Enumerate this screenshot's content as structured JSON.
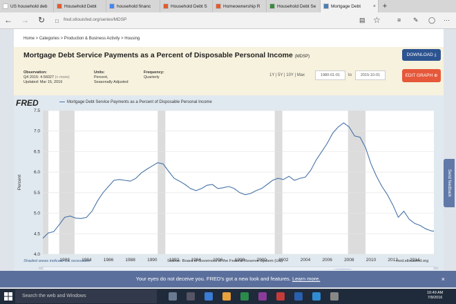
{
  "browser": {
    "tabs": [
      {
        "label": "US household deb",
        "color": "#ffffff",
        "active": false
      },
      {
        "label": "Household Debt",
        "color": "#e35b2d",
        "active": false
      },
      {
        "label": "household financ",
        "color": "#4285f4",
        "active": false
      },
      {
        "label": "Household Debt S",
        "color": "#e35b2d",
        "active": false
      },
      {
        "label": "Homeownership R",
        "color": "#e35b2d",
        "active": false
      },
      {
        "label": "Household Debt Se",
        "color": "#3b8a3b",
        "active": false
      },
      {
        "label": "Mortgage Debt",
        "color": "#4a7fb5",
        "active": true
      }
    ],
    "new_tab": "+",
    "url": "fred.stlouisfed.org/series/MDSP"
  },
  "page": {
    "breadcrumb": "Home > Categories > Production & Business Activity > Housing",
    "title": "Mortgage Debt Service Payments as a Percent of Disposable Personal Income",
    "series_id": "(MDSP)",
    "download_label": "DOWNLOAD",
    "edit_label": "EDIT GRAPH",
    "observation": {
      "label": "Observation:",
      "period": "Q4 2015:",
      "value": "4.56027",
      "more": "(+ more)",
      "updated": "Updated: Mar 15, 2016"
    },
    "units": {
      "label": "Units:",
      "l1": "Percent,",
      "l2": "Seasonally Adjusted"
    },
    "frequency": {
      "label": "Frequency:",
      "value": "Quarterly"
    },
    "ranges": "1Y | 5Y | 10Y | Max",
    "start_date": "1980-01-01",
    "to_label": "to",
    "end_date": "2015-10-01",
    "legend": "Mortgage Debt Service Payments as a Percent of Disposable Personal Income",
    "fred_logo": "FRED",
    "footer_left": "Shaded areas indicate US recessions",
    "footer_source": "Source: Board of Governors of the Federal Reserve System (US)",
    "footer_right": "fred.stlouisfed.org"
  },
  "banner": {
    "text": "Your eyes do not deceive you. FRED's got a new look and features.",
    "link": "Learn more.",
    "close": "×"
  },
  "feedback": "Send feedback",
  "taskbar": {
    "search": "Search the web and Windows",
    "time": "10:49 AM",
    "date": "7/9/2016"
  },
  "chart_data": {
    "type": "line",
    "title": "Mortgage Debt Service Payments as a Percent of Disposable Personal Income",
    "ylabel": "Percent",
    "ylim": [
      4.0,
      7.5
    ],
    "yticks": [
      "4.0",
      "4.5",
      "5.0",
      "5.5",
      "6.0",
      "6.5",
      "7.0",
      "7.5"
    ],
    "xticks": [
      "1982",
      "1984",
      "1986",
      "1988",
      "1990",
      "1992",
      "1994",
      "1996",
      "1998",
      "2000",
      "2002",
      "2004",
      "2006",
      "2008",
      "2010",
      "2012",
      "2014"
    ],
    "recessions": [
      [
        1980.0,
        1980.5
      ],
      [
        1981.5,
        1982.9
      ],
      [
        1990.5,
        1991.2
      ],
      [
        2001.2,
        2001.9
      ],
      [
        2007.9,
        2009.5
      ]
    ],
    "x": [
      1980.0,
      1980.5,
      1981.0,
      1981.5,
      1982.0,
      1982.5,
      1983.0,
      1983.5,
      1984.0,
      1984.5,
      1985.0,
      1985.5,
      1986.0,
      1986.5,
      1987.0,
      1987.5,
      1988.0,
      1988.5,
      1989.0,
      1989.5,
      1990.0,
      1990.5,
      1991.0,
      1991.5,
      1992.0,
      1992.5,
      1993.0,
      1993.5,
      1994.0,
      1994.5,
      1995.0,
      1995.5,
      1996.0,
      1996.5,
      1997.0,
      1997.5,
      1998.0,
      1998.5,
      1999.0,
      1999.5,
      2000.0,
      2000.5,
      2001.0,
      2001.5,
      2002.0,
      2002.5,
      2003.0,
      2003.5,
      2004.0,
      2004.5,
      2005.0,
      2005.5,
      2006.0,
      2006.5,
      2007.0,
      2007.5,
      2008.0,
      2008.5,
      2009.0,
      2009.5,
      2010.0,
      2010.5,
      2011.0,
      2011.5,
      2012.0,
      2012.5,
      2013.0,
      2013.5,
      2014.0,
      2014.5,
      2015.0,
      2015.5,
      2015.75
    ],
    "series": [
      {
        "values": [
          4.39,
          4.52,
          4.55,
          4.72,
          4.9,
          4.93,
          4.88,
          4.87,
          4.9,
          5.05,
          5.3,
          5.5,
          5.65,
          5.8,
          5.82,
          5.8,
          5.78,
          5.85,
          5.98,
          6.07,
          6.15,
          6.23,
          6.2,
          6.02,
          5.85,
          5.78,
          5.7,
          5.6,
          5.55,
          5.6,
          5.68,
          5.7,
          5.6,
          5.62,
          5.65,
          5.6,
          5.5,
          5.45,
          5.48,
          5.55,
          5.6,
          5.7,
          5.8,
          5.85,
          5.82,
          5.9,
          5.8,
          5.85,
          5.88,
          6.05,
          6.3,
          6.5,
          6.7,
          6.95,
          7.1,
          7.2,
          7.1,
          6.88,
          6.85,
          6.6,
          6.2,
          5.9,
          5.65,
          5.45,
          5.2,
          4.9,
          5.05,
          4.85,
          4.75,
          4.7,
          4.62,
          4.57,
          4.56
        ]
      }
    ]
  }
}
